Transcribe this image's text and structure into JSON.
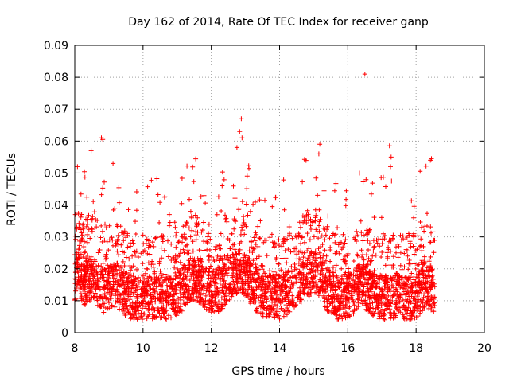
{
  "chart_data": {
    "type": "scatter",
    "title": "Day 162 of 2014, Rate Of TEC Index for receiver ganp",
    "xlabel": "GPS time / hours",
    "ylabel": "ROTI / TECUs",
    "xlim": [
      8,
      20
    ],
    "ylim": [
      0,
      0.09
    ],
    "xticks": [
      8,
      10,
      12,
      14,
      16,
      18,
      20
    ],
    "yticks": [
      0,
      0.01,
      0.02,
      0.03,
      0.04,
      0.05,
      0.06,
      0.07,
      0.08,
      0.09
    ],
    "xtick_labels": [
      "8",
      "10",
      "12",
      "14",
      "16",
      "18",
      "20"
    ],
    "ytick_labels": [
      "0",
      "0.01",
      "0.02",
      "0.03",
      "0.04",
      "0.05",
      "0.06",
      "0.07",
      "0.08",
      "0.09"
    ],
    "grid": true,
    "marker": "+",
    "color": "#ff0000",
    "x_data_range": [
      8.0,
      18.55
    ],
    "series": [
      {
        "name": "ROTI",
        "notable_points": [
          {
            "x": 8.78,
            "y": 0.061
          },
          {
            "x": 8.82,
            "y": 0.0605
          },
          {
            "x": 8.08,
            "y": 0.052
          },
          {
            "x": 8.48,
            "y": 0.057
          },
          {
            "x": 9.12,
            "y": 0.053
          },
          {
            "x": 12.88,
            "y": 0.067
          },
          {
            "x": 12.83,
            "y": 0.063
          },
          {
            "x": 12.9,
            "y": 0.061
          },
          {
            "x": 12.75,
            "y": 0.058
          },
          {
            "x": 15.18,
            "y": 0.059
          },
          {
            "x": 15.15,
            "y": 0.056
          },
          {
            "x": 16.5,
            "y": 0.081
          },
          {
            "x": 17.22,
            "y": 0.0585
          },
          {
            "x": 17.27,
            "y": 0.055
          },
          {
            "x": 17.25,
            "y": 0.052
          },
          {
            "x": 17.28,
            "y": 0.0475
          },
          {
            "x": 18.42,
            "y": 0.054
          },
          {
            "x": 18.45,
            "y": 0.0545
          }
        ]
      }
    ]
  }
}
